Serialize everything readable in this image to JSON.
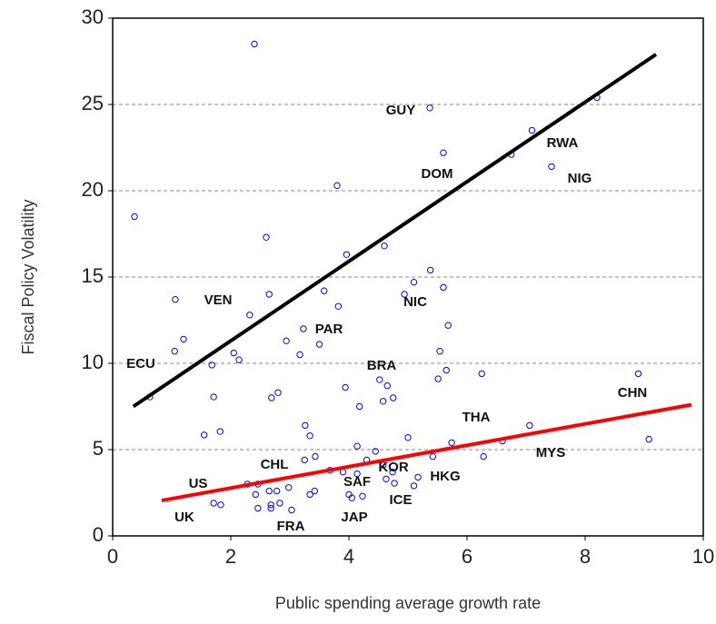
{
  "chart_data": {
    "type": "scatter",
    "x_label": "Public spending average growth rate",
    "y_label": "Fiscal Policy Volatility",
    "xlim": [
      0,
      10
    ],
    "xticks": [
      0,
      2,
      4,
      6,
      8,
      10
    ],
    "ylim": [
      0,
      30
    ],
    "yticks": [
      0,
      5,
      10,
      15,
      20,
      25,
      30
    ],
    "grid": true,
    "marker_color": "#0000ff",
    "x": [
      2.4,
      0.37,
      5.37,
      5.6,
      6.75,
      7.1,
      8.2,
      7.43,
      3.8,
      2.6,
      3.96,
      4.6,
      5.38,
      5.1,
      5.6,
      3.58,
      1.06,
      2.65,
      4.94,
      3.82,
      2.32,
      3.23,
      5.68,
      1.2,
      2.94,
      3.5,
      3.17,
      1.05,
      2.05,
      2.14,
      5.54,
      1.68,
      0.63,
      5.65,
      6.25,
      8.9,
      4.52,
      5.51,
      4.65,
      3.94,
      2.8,
      2.69,
      1.71,
      4.75,
      4.58,
      4.18,
      7.06,
      3.26,
      3.34,
      1.55,
      1.82,
      5.0,
      9.08,
      6.6,
      5.74,
      4.14,
      4.45,
      3.43,
      3.25,
      5.42,
      6.28,
      4.3,
      4.58,
      3.68,
      3.9,
      4.74,
      4.14,
      5.17,
      4.63,
      4.77,
      5.1,
      2.28,
      2.46,
      2.98,
      3.42,
      2.65,
      2.78,
      2.42,
      3.34,
      4.0,
      4.05,
      4.23,
      1.71,
      1.83,
      2.68,
      2.83,
      2.46,
      2.68,
      3.03
    ],
    "y": [
      28.5,
      18.5,
      24.8,
      22.2,
      22.1,
      23.5,
      25.4,
      21.4,
      20.3,
      17.3,
      16.3,
      16.8,
      15.4,
      14.7,
      14.4,
      14.2,
      13.7,
      14.0,
      14.0,
      13.3,
      12.8,
      12.0,
      12.2,
      11.4,
      11.3,
      11.1,
      10.5,
      10.7,
      10.6,
      10.2,
      10.7,
      9.9,
      8.05,
      9.6,
      9.4,
      9.4,
      9.05,
      9.1,
      8.7,
      8.6,
      8.3,
      8.0,
      8.05,
      8.0,
      7.8,
      7.5,
      6.4,
      6.4,
      5.8,
      5.85,
      6.05,
      5.7,
      5.6,
      5.5,
      5.4,
      5.2,
      4.9,
      4.6,
      4.4,
      4.6,
      4.6,
      4.4,
      4.1,
      3.8,
      3.7,
      3.7,
      3.6,
      3.4,
      3.3,
      3.05,
      2.9,
      3.0,
      3.0,
      2.8,
      2.6,
      2.6,
      2.6,
      2.4,
      2.4,
      2.4,
      2.2,
      2.3,
      1.9,
      1.8,
      1.8,
      1.9,
      1.6,
      1.6,
      1.5
    ],
    "lines": [
      {
        "color": "#000000",
        "x": [
          0.35,
          9.2
        ],
        "y": [
          7.5,
          27.9
        ]
      },
      {
        "color": "#ff0000",
        "x": [
          0.83,
          9.8
        ],
        "y": [
          2.05,
          7.6
        ]
      }
    ],
    "annotations": [
      "GUY",
      "RWA",
      "DOM",
      "NIG",
      "VEN",
      "NIC",
      "PAR",
      "ECU",
      "BRA",
      "CHN",
      "THA",
      "MYS",
      "CHL",
      "KOR",
      "HKG",
      "SAF",
      "US",
      "ICE",
      "UK",
      "JAP",
      "FRA"
    ]
  }
}
